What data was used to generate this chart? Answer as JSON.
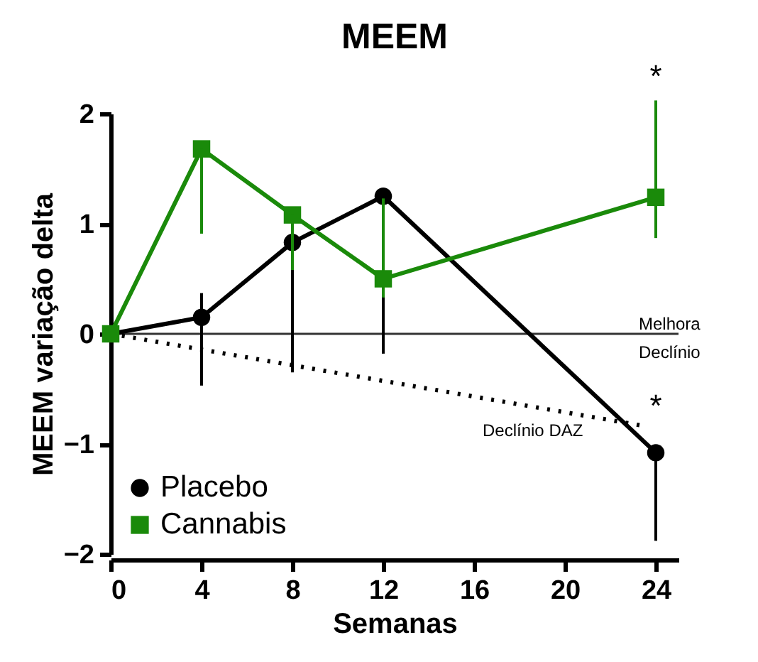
{
  "chart_data": {
    "type": "line",
    "title": "MEEM",
    "xlabel": "Semanas",
    "ylabel": "MEEM variação delta",
    "x": [
      0,
      4,
      8,
      12,
      24
    ],
    "series": [
      {
        "name": "Placebo",
        "color": "#000000",
        "marker": "circle",
        "values": [
          0,
          0.15,
          0.83,
          1.25,
          -1.08
        ],
        "errors": [
          null,
          [
            -0.47,
            0.37
          ],
          [
            -0.35,
            0.83
          ],
          [
            -0.18,
            1.25
          ],
          [
            -1.88,
            -1.08
          ]
        ]
      },
      {
        "name": "Cannabis",
        "color": "#1a8a0a",
        "marker": "square",
        "values": [
          0,
          1.68,
          1.08,
          0.5,
          1.24
        ],
        "errors": [
          null,
          [
            0.91,
            1.68
          ],
          [
            0.58,
            1.08
          ],
          [
            0.33,
            1.23
          ],
          [
            0.87,
            2.12
          ]
        ]
      },
      {
        "type": "line",
        "color": "#000000",
        "marker": "none",
        "line_style": "dotted",
        "x": [
          0,
          23.3
        ],
        "values": [
          0,
          -0.83
        ]
      }
    ],
    "xlim": [
      0,
      25
    ],
    "ylim": [
      -2,
      2
    ],
    "xticks": [
      0,
      4,
      8,
      12,
      16,
      20,
      24
    ],
    "yticks": [
      -2,
      -1,
      0,
      1,
      2
    ],
    "ref_lines": [
      {
        "axis": "y",
        "value": 0,
        "color": "#333333"
      }
    ],
    "annotations": [
      "*",
      "*",
      "Declínio DAZ",
      "Melhora",
      "Declínio"
    ],
    "legend": "bottom left",
    "grid": false
  }
}
